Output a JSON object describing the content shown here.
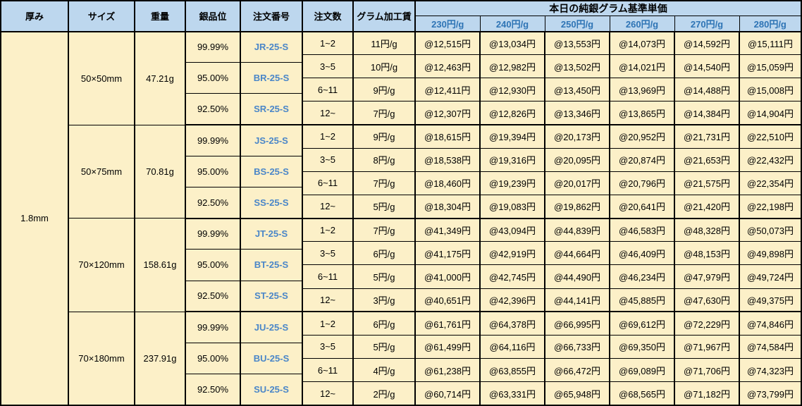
{
  "table": {
    "headers": {
      "thickness": "厚み",
      "size": "サイズ",
      "weight": "重量",
      "purity": "銀品位",
      "order_no": "注文番号",
      "qty": "注文数",
      "fee": "グラム加工賃",
      "price_group": "本日の純銀グラム基準単価",
      "price_cols": [
        "230円/g",
        "240円/g",
        "250円/g",
        "260円/g",
        "270円/g",
        "280円/g"
      ]
    },
    "thickness": "1.8mm",
    "blocks": [
      {
        "size": "50×50mm",
        "weight": "47.21g",
        "purities": [
          {
            "purity": "99.99%",
            "order_no": "JR-25-S"
          },
          {
            "purity": "95.00%",
            "order_no": "BR-25-S"
          },
          {
            "purity": "92.50%",
            "order_no": "SR-25-S"
          }
        ],
        "rows": [
          {
            "qty": "1~2",
            "fee": "11円/g",
            "prices": [
              "@12,515円",
              "@13,034円",
              "@13,553円",
              "@14,073円",
              "@14,592円",
              "@15,111円"
            ]
          },
          {
            "qty": "3~5",
            "fee": "10円/g",
            "prices": [
              "@12,463円",
              "@12,982円",
              "@13,502円",
              "@14,021円",
              "@14,540円",
              "@15,059円"
            ]
          },
          {
            "qty": "6~11",
            "fee": "9円/g",
            "prices": [
              "@12,411円",
              "@12,930円",
              "@13,450円",
              "@13,969円",
              "@14,488円",
              "@15,008円"
            ]
          },
          {
            "qty": "12~",
            "fee": "7円/g",
            "prices": [
              "@12,307円",
              "@12,826円",
              "@13,346円",
              "@13,865円",
              "@14,384円",
              "@14,904円"
            ]
          }
        ]
      },
      {
        "size": "50×75mm",
        "weight": "70.81g",
        "purities": [
          {
            "purity": "99.99%",
            "order_no": "JS-25-S"
          },
          {
            "purity": "95.00%",
            "order_no": "BS-25-S"
          },
          {
            "purity": "92.50%",
            "order_no": "SS-25-S"
          }
        ],
        "rows": [
          {
            "qty": "1~2",
            "fee": "9円/g",
            "prices": [
              "@18,615円",
              "@19,394円",
              "@20,173円",
              "@20,952円",
              "@21,731円",
              "@22,510円"
            ]
          },
          {
            "qty": "3~5",
            "fee": "8円/g",
            "prices": [
              "@18,538円",
              "@19,316円",
              "@20,095円",
              "@20,874円",
              "@21,653円",
              "@22,432円"
            ]
          },
          {
            "qty": "6~11",
            "fee": "7円/g",
            "prices": [
              "@18,460円",
              "@19,239円",
              "@20,017円",
              "@20,796円",
              "@21,575円",
              "@22,354円"
            ]
          },
          {
            "qty": "12~",
            "fee": "5円/g",
            "prices": [
              "@18,304円",
              "@19,083円",
              "@19,862円",
              "@20,641円",
              "@21,420円",
              "@22,198円"
            ]
          }
        ]
      },
      {
        "size": "70×120mm",
        "weight": "158.61g",
        "purities": [
          {
            "purity": "99.99%",
            "order_no": "JT-25-S"
          },
          {
            "purity": "95.00%",
            "order_no": "BT-25-S"
          },
          {
            "purity": "92.50%",
            "order_no": "ST-25-S"
          }
        ],
        "rows": [
          {
            "qty": "1~2",
            "fee": "7円/g",
            "prices": [
              "@41,349円",
              "@43,094円",
              "@44,839円",
              "@46,583円",
              "@48,328円",
              "@50,073円"
            ]
          },
          {
            "qty": "3~5",
            "fee": "6円/g",
            "prices": [
              "@41,175円",
              "@42,919円",
              "@44,664円",
              "@46,409円",
              "@48,153円",
              "@49,898円"
            ]
          },
          {
            "qty": "6~11",
            "fee": "5円/g",
            "prices": [
              "@41,000円",
              "@42,745円",
              "@44,490円",
              "@46,234円",
              "@47,979円",
              "@49,724円"
            ]
          },
          {
            "qty": "12~",
            "fee": "3円/g",
            "prices": [
              "@40,651円",
              "@42,396円",
              "@44,141円",
              "@45,885円",
              "@47,630円",
              "@49,375円"
            ]
          }
        ]
      },
      {
        "size": "70×180mm",
        "weight": "237.91g",
        "purities": [
          {
            "purity": "99.99%",
            "order_no": "JU-25-S"
          },
          {
            "purity": "95.00%",
            "order_no": "BU-25-S"
          },
          {
            "purity": "92.50%",
            "order_no": "SU-25-S"
          }
        ],
        "rows": [
          {
            "qty": "1~2",
            "fee": "6円/g",
            "prices": [
              "@61,761円",
              "@64,378円",
              "@66,995円",
              "@69,612円",
              "@72,229円",
              "@74,846円"
            ]
          },
          {
            "qty": "3~5",
            "fee": "5円/g",
            "prices": [
              "@61,499円",
              "@64,116円",
              "@66,733円",
              "@69,350円",
              "@71,967円",
              "@74,584円"
            ]
          },
          {
            "qty": "6~11",
            "fee": "4円/g",
            "prices": [
              "@61,238円",
              "@63,855円",
              "@66,472円",
              "@69,089円",
              "@71,706円",
              "@74,323円"
            ]
          },
          {
            "qty": "12~",
            "fee": "2円/g",
            "prices": [
              "@60,714円",
              "@63,331円",
              "@65,948円",
              "@68,565円",
              "@71,182円",
              "@73,799円"
            ]
          }
        ]
      }
    ]
  },
  "colors": {
    "header_bg": "#BDD7EE",
    "cell_bg": "#FCF0C8",
    "rate_text": "#2E74B5",
    "order_no_text": "#4A86C8",
    "border": "#000000"
  }
}
